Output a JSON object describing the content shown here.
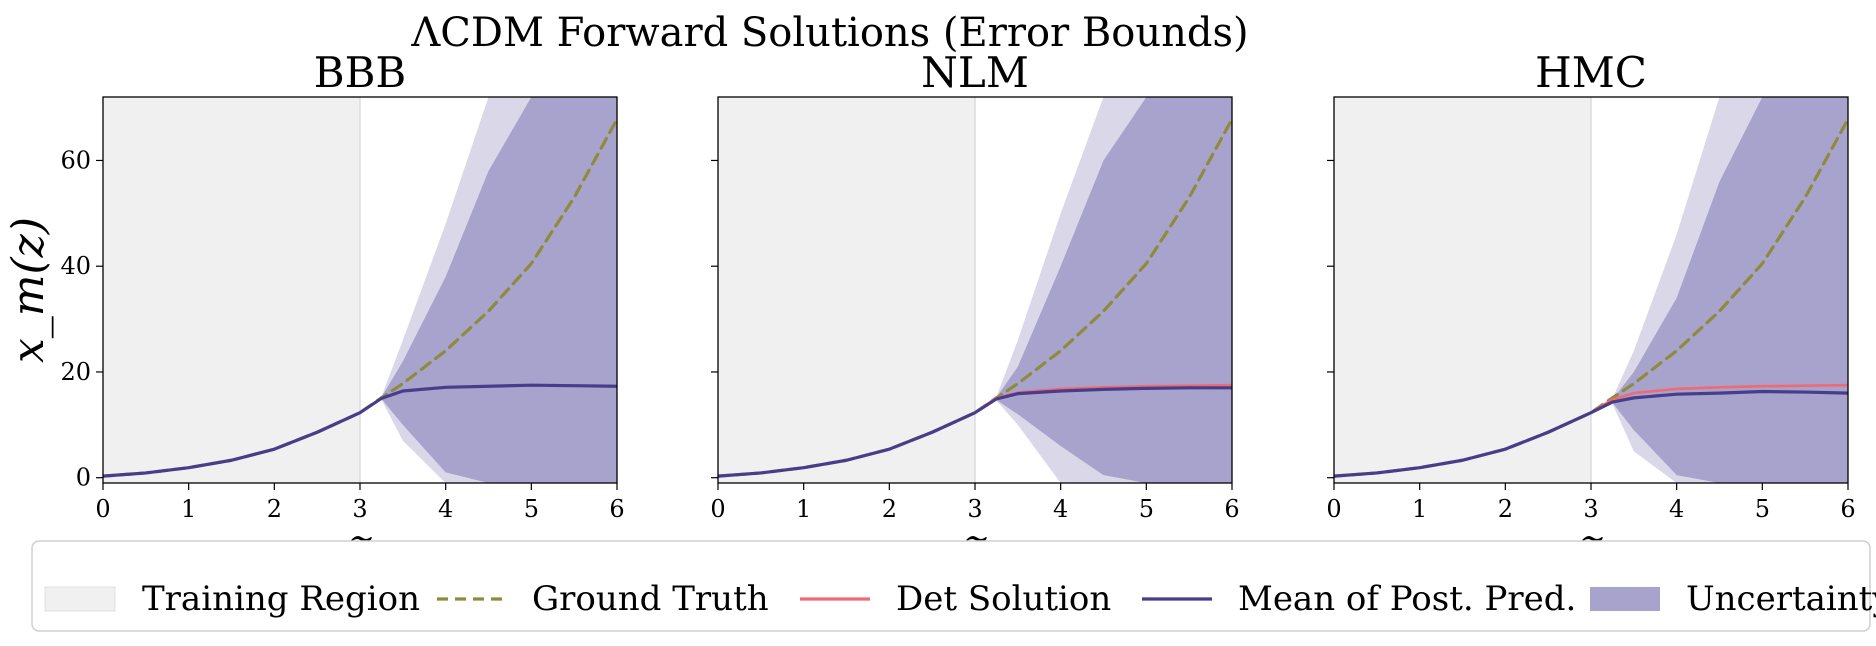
{
  "chart_data": {
    "type": "line",
    "suptitle": "ΛCDM Forward Solutions (Error Bounds)",
    "xlabel": "z",
    "ylabel": "x_m(z)",
    "xlim": [
      0,
      6
    ],
    "ylim": [
      -1,
      72
    ],
    "xticks": [
      0,
      1,
      2,
      3,
      4,
      5,
      6
    ],
    "yticks": [
      0,
      20,
      40,
      60
    ],
    "training_region": [
      0,
      3
    ],
    "grid": false,
    "legend_position": "bottom",
    "legend": [
      {
        "key": "training",
        "label": "Training Region",
        "color": "#f0f0f0"
      },
      {
        "key": "truth",
        "label": "Ground Truth",
        "color": "#8c8c3c"
      },
      {
        "key": "det",
        "label": "Det Solution",
        "color": "#f06a72"
      },
      {
        "key": "mean",
        "label": "Mean of Post. Pred.",
        "color": "#483d8b"
      },
      {
        "key": "uncertainty",
        "label": "Uncertainty",
        "color": "#a8a3cc"
      }
    ],
    "shared_series": {
      "ground_truth": {
        "x": [
          0,
          0.5,
          1,
          1.5,
          2,
          2.5,
          3,
          3.25,
          3.5,
          4,
          4.5,
          5,
          5.5,
          6
        ],
        "y": [
          0.3,
          0.9,
          1.9,
          3.3,
          5.4,
          8.6,
          12.3,
          15.1,
          17.8,
          24.0,
          31.5,
          40.5,
          53.0,
          67.8
        ]
      }
    },
    "panels": [
      {
        "title": "BBB",
        "mean": {
          "x": [
            0,
            0.5,
            1,
            1.5,
            2,
            2.5,
            3,
            3.25,
            3.5,
            4,
            4.5,
            5,
            5.5,
            6
          ],
          "y": [
            0.3,
            0.9,
            1.9,
            3.3,
            5.4,
            8.6,
            12.3,
            15.0,
            16.4,
            17.1,
            17.3,
            17.5,
            17.4,
            17.3
          ]
        },
        "det": null,
        "bands": {
          "x": [
            3.25,
            3.5,
            4,
            4.5,
            5,
            5.5,
            6
          ],
          "outer_upper": [
            15.3,
            26.0,
            48.0,
            72,
            72,
            72,
            72
          ],
          "outer_lower": [
            14.8,
            7.0,
            -1,
            -1,
            -1,
            -1,
            -1
          ],
          "inner_upper": [
            15.2,
            22.0,
            38.0,
            58.0,
            72,
            72,
            72
          ],
          "inner_lower": [
            14.9,
            10.0,
            1.0,
            -1,
            -1,
            -1,
            -1
          ]
        }
      },
      {
        "title": "NLM",
        "mean": {
          "x": [
            0,
            0.5,
            1,
            1.5,
            2,
            2.5,
            3,
            3.25,
            3.5,
            4,
            4.5,
            5,
            5.5,
            6
          ],
          "y": [
            0.3,
            0.9,
            1.9,
            3.3,
            5.4,
            8.6,
            12.3,
            14.9,
            15.9,
            16.4,
            16.7,
            16.9,
            17.0,
            17.0
          ]
        },
        "det": {
          "x": [
            0,
            0.5,
            1,
            1.5,
            2,
            2.5,
            3,
            3.25,
            3.5,
            4,
            4.5,
            5,
            5.5,
            6
          ],
          "y": [
            0.3,
            0.9,
            1.9,
            3.3,
            5.4,
            8.6,
            12.3,
            15.1,
            16.1,
            16.8,
            17.1,
            17.3,
            17.4,
            17.5
          ]
        },
        "bands": {
          "x": [
            3.25,
            3.5,
            4,
            4.5,
            5,
            5.5,
            6
          ],
          "outer_upper": [
            15.3,
            26.0,
            50.0,
            72,
            72,
            72,
            72
          ],
          "outer_lower": [
            14.6,
            10.0,
            -1,
            -1,
            -1,
            -1,
            -1
          ],
          "inner_upper": [
            15.2,
            21.0,
            40.0,
            60.0,
            72,
            72,
            72
          ],
          "inner_lower": [
            14.7,
            12.0,
            6.0,
            0.5,
            -1,
            -1,
            -1
          ]
        }
      },
      {
        "title": "HMC",
        "mean": {
          "x": [
            0,
            0.5,
            1,
            1.5,
            2,
            2.5,
            3,
            3.25,
            3.5,
            4,
            4.5,
            5,
            5.5,
            6
          ],
          "y": [
            0.3,
            0.9,
            1.9,
            3.3,
            5.4,
            8.6,
            12.3,
            14.3,
            15.1,
            15.8,
            16.0,
            16.3,
            16.2,
            16.0
          ]
        },
        "det": {
          "x": [
            0,
            0.5,
            1,
            1.5,
            2,
            2.5,
            3,
            3.25,
            3.5,
            4,
            4.5,
            5,
            5.5,
            6
          ],
          "y": [
            0.3,
            0.9,
            1.9,
            3.3,
            5.4,
            8.6,
            12.3,
            14.8,
            16.0,
            16.8,
            17.1,
            17.3,
            17.4,
            17.5
          ]
        },
        "bands": {
          "x": [
            3.25,
            3.5,
            4,
            4.5,
            5,
            5.5,
            6
          ],
          "outer_upper": [
            15.0,
            24.0,
            46.0,
            72,
            72,
            72,
            72
          ],
          "outer_lower": [
            14.0,
            5.0,
            -1,
            -1,
            -1,
            -1,
            -1
          ],
          "inner_upper": [
            14.8,
            20.0,
            34.0,
            56.0,
            72,
            72,
            72
          ],
          "inner_lower": [
            14.2,
            9.0,
            0.5,
            -1,
            -1,
            -1,
            -1
          ]
        }
      }
    ]
  }
}
